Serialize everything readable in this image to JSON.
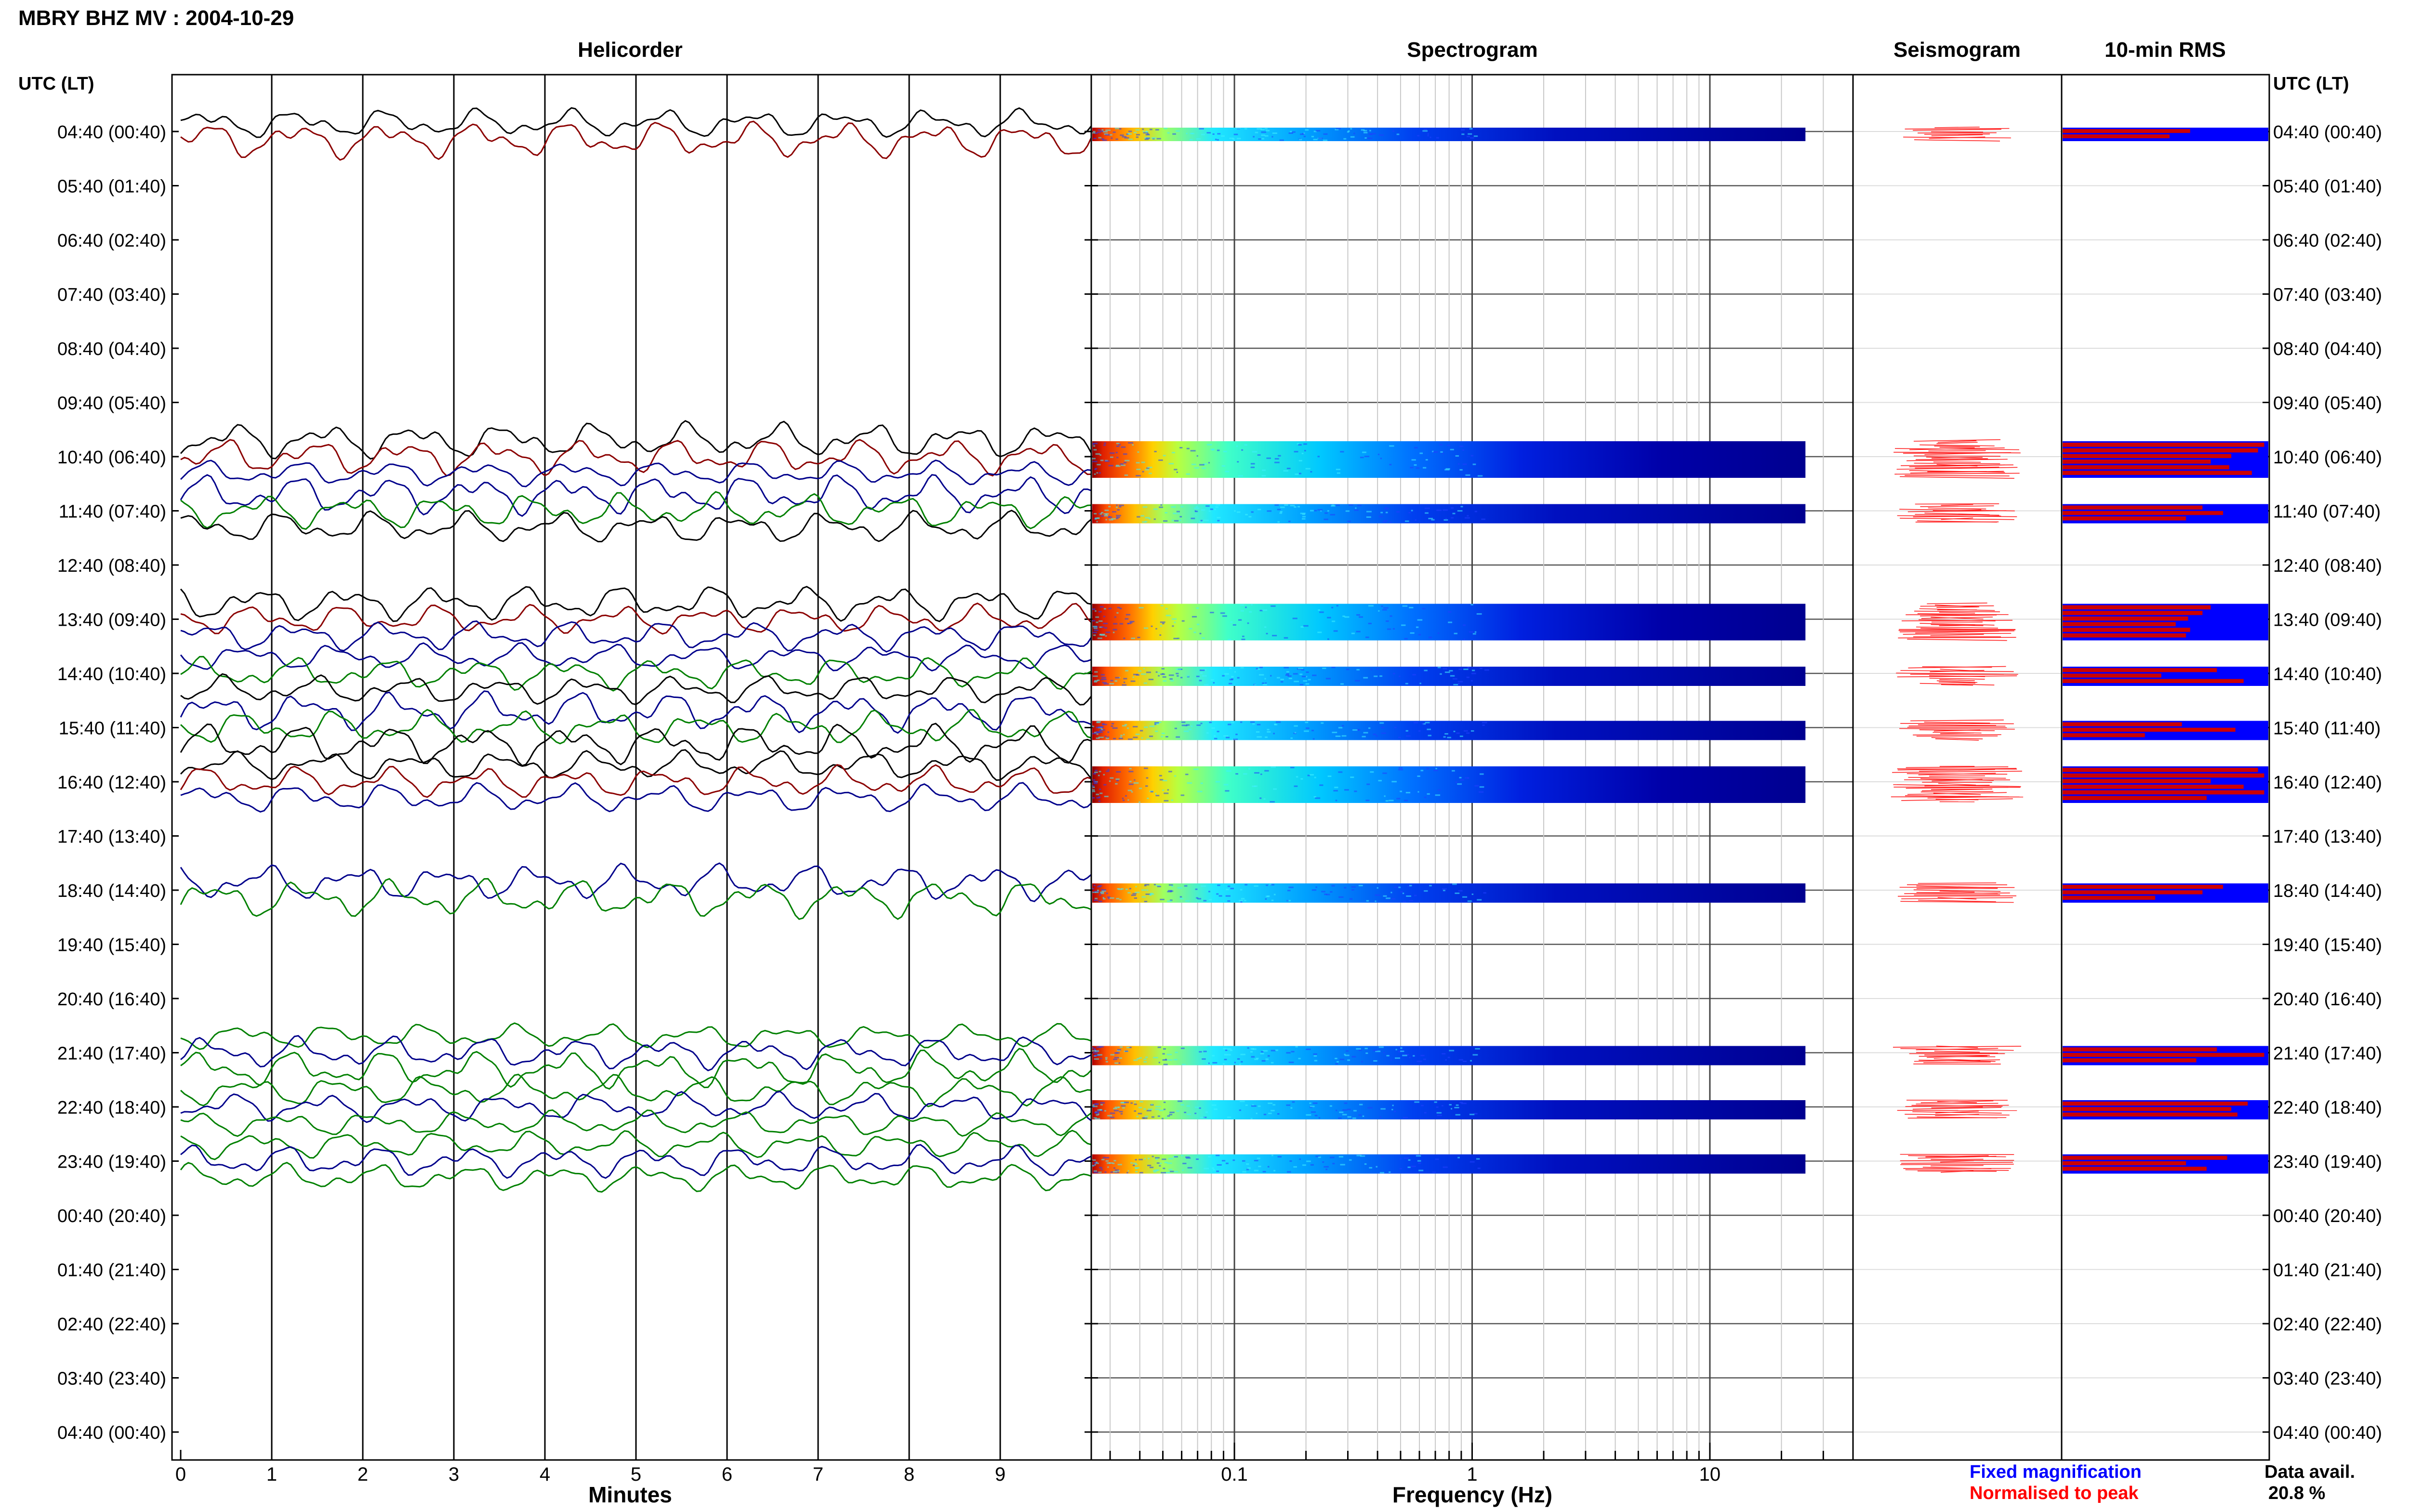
{
  "title": "MBRY BHZ MV : 2004-10-29",
  "panels": {
    "helicorder": "Helicorder",
    "spectrogram": "Spectrogram",
    "seismogram": "Seismogram",
    "rms": "10-min RMS"
  },
  "axis_labels": {
    "time_left": "UTC (LT)",
    "time_right": "UTC (LT)",
    "helicorder_x": "Minutes",
    "spectrogram_x": "Frequency (Hz)"
  },
  "legend": {
    "fixed": "Fixed magnification",
    "normalised": "Normalised to peak",
    "fixed_color": "#0000ff",
    "normalised_color": "#ff0000"
  },
  "data_avail": {
    "label": "Data avail.",
    "value": "20.8 %"
  },
  "colors": {
    "trace_black": "#000000",
    "trace_red": "#8b0000",
    "trace_blue": "#00008b",
    "trace_green": "#008000",
    "rms_fixed": "#0000ff",
    "rms_normalised": "#cc0000"
  },
  "chart_data": {
    "type": "heatmap",
    "rows": [
      {
        "label": "04:40 (00:40)",
        "has_data": true,
        "lines": 2,
        "rms": [
          0.62,
          0.52
        ]
      },
      {
        "label": "05:40 (01:40)",
        "has_data": false
      },
      {
        "label": "06:40 (02:40)",
        "has_data": false
      },
      {
        "label": "07:40 (03:40)",
        "has_data": false
      },
      {
        "label": "08:40 (04:40)",
        "has_data": false
      },
      {
        "label": "09:40 (05:40)",
        "has_data": false
      },
      {
        "label": "10:40 (06:40)",
        "has_data": true,
        "lines": 6,
        "rms": [
          0.98,
          0.95,
          0.82,
          0.72,
          0.81,
          0.92
        ]
      },
      {
        "label": "11:40 (07:40)",
        "has_data": true,
        "lines": 3,
        "rms": [
          0.68,
          0.78,
          0.6
        ]
      },
      {
        "label": "12:40 (08:40)",
        "has_data": false
      },
      {
        "label": "13:40 (09:40)",
        "has_data": true,
        "lines": 6,
        "rms": [
          0.72,
          0.68,
          0.61,
          0.55,
          0.62,
          0.6
        ]
      },
      {
        "label": "14:40 (10:40)",
        "has_data": true,
        "lines": 3,
        "rms": [
          0.75,
          0.48,
          0.88
        ]
      },
      {
        "label": "15:40 (11:40)",
        "has_data": true,
        "lines": 3,
        "rms": [
          0.58,
          0.84,
          0.4
        ]
      },
      {
        "label": "16:40 (12:40)",
        "has_data": true,
        "lines": 6,
        "rms": [
          0.95,
          0.98,
          0.72,
          0.88,
          0.98,
          0.7
        ]
      },
      {
        "label": "17:40 (13:40)",
        "has_data": false
      },
      {
        "label": "18:40 (14:40)",
        "has_data": true,
        "lines": 3,
        "rms": [
          0.78,
          0.68,
          0.45
        ]
      },
      {
        "label": "19:40 (15:40)",
        "has_data": false
      },
      {
        "label": "20:40 (16:40)",
        "has_data": false
      },
      {
        "label": "21:40 (17:40)",
        "has_data": true,
        "lines": 3,
        "rms": [
          0.75,
          0.98,
          0.65
        ]
      },
      {
        "label": "22:40 (18:40)",
        "has_data": true,
        "lines": 3,
        "rms": [
          0.9,
          0.82,
          0.85
        ]
      },
      {
        "label": "23:40 (19:40)",
        "has_data": true,
        "lines": 3,
        "rms": [
          0.8,
          0.6,
          0.7
        ]
      },
      {
        "label": "00:40 (20:40)",
        "has_data": false
      },
      {
        "label": "01:40 (21:40)",
        "has_data": false
      },
      {
        "label": "02:40 (22:40)",
        "has_data": false
      },
      {
        "label": "03:40 (23:40)",
        "has_data": false
      },
      {
        "label": "04:40 (00:40)",
        "has_data": false
      }
    ],
    "helicorder_x_ticks": [
      "0",
      "1",
      "2",
      "3",
      "4",
      "5",
      "6",
      "7",
      "8",
      "9"
    ],
    "helicorder_xlim": [
      0,
      10
    ],
    "spectrogram_x_ticks": [
      "0.1",
      "1",
      "10"
    ],
    "spectrogram_xscale": "log",
    "spectrogram_xlim": [
      0.025,
      40
    ],
    "spectrogram_data_xmax": 25
  }
}
